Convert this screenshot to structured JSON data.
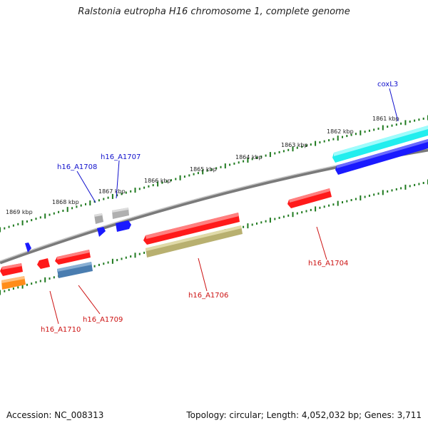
{
  "title": "Ralstonia eutropha H16 chromosome 1, complete genome",
  "footer": {
    "accession": "Accession: NC_008313",
    "topology": "Topology: circular; Length: 4,052,032 bp; Genes: 3,711"
  },
  "colors": {
    "backbone": "#7a7a7a",
    "ticks": "#1f7a1f",
    "forward_label": "#1010cc",
    "reverse_label": "#cc1010",
    "red_gene": "#ff1a1a",
    "cyan_gene": "#22eeee",
    "blue_gene": "#1a1aff",
    "gray_gene": "#b0b0b0",
    "olive_gene": "#b8b070",
    "steelblue_gene": "#4a7db0",
    "orange_gene": "#ff8c1a"
  },
  "ruler": {
    "labels": [
      "1861 kbp",
      "1862 kbp",
      "1863 kbp",
      "1864 kbp",
      "1865 kbp",
      "1866 kbp",
      "1867 kbp",
      "1868 kbp",
      "1869 kbp"
    ]
  },
  "gene_labels": {
    "coxL3": "coxL3",
    "h16_A1707": "h16_A1707",
    "h16_A1708": "h16_A1708",
    "h16_A1704": "h16_A1704",
    "h16_A1706": "h16_A1706",
    "h16_A1709": "h16_A1709",
    "h16_A1710": "h16_A1710"
  },
  "legend_icons": [
    "arrow-gene-icon"
  ]
}
